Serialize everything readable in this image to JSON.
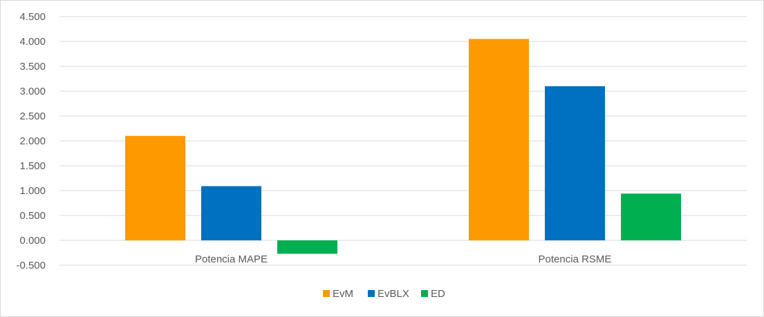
{
  "chart_data": {
    "type": "bar",
    "categories": [
      "Potencia MAPE",
      "Potencia RSME"
    ],
    "series": [
      {
        "name": "EvM",
        "color": "#FF9900",
        "values": [
          2.1,
          4.05
        ]
      },
      {
        "name": "EvBLX",
        "color": "#0070C0",
        "values": [
          1.09,
          3.1
        ]
      },
      {
        "name": "ED",
        "color": "#00B050",
        "values": [
          -0.27,
          0.94
        ]
      }
    ],
    "ylim": [
      -0.5,
      4.5
    ],
    "yticks": [
      "-0.500",
      "0.000",
      "0.500",
      "1.000",
      "1.500",
      "2.000",
      "2.500",
      "3.000",
      "3.500",
      "4.000",
      "4.500"
    ],
    "ytick_values": [
      -0.5,
      0,
      0.5,
      1,
      1.5,
      2,
      2.5,
      3,
      3.5,
      4,
      4.5
    ],
    "grid": true,
    "legend_position": "bottom",
    "title": "",
    "xlabel": "",
    "ylabel": ""
  }
}
